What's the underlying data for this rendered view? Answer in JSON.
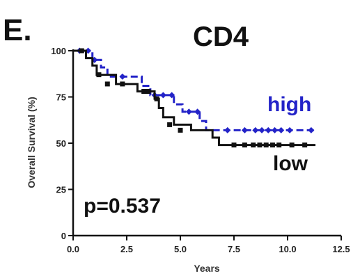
{
  "panel_label": "E.",
  "colors": {
    "high": "#2323c8",
    "low": "#111111",
    "axis": "#111111"
  },
  "chart_data": {
    "type": "line",
    "subtype": "kaplan-meier",
    "title": "CD4",
    "xlabel": "Years",
    "ylabel": "Overall Survival (%)",
    "xlim": [
      0,
      12.5
    ],
    "ylim": [
      0,
      100
    ],
    "x_ticks": [
      "0.0",
      "2.5",
      "5.0",
      "7.5",
      "10.0",
      "12.5"
    ],
    "y_ticks": [
      "0",
      "25",
      "50",
      "75",
      "100"
    ],
    "grid": false,
    "annotation": "p=0.537",
    "series": [
      {
        "name": "high",
        "color": "#2323c8",
        "style": "dashed",
        "steps": [
          [
            0,
            100
          ],
          [
            0.9,
            95
          ],
          [
            1.3,
            91
          ],
          [
            1.6,
            86
          ],
          [
            3.2,
            81
          ],
          [
            3.6,
            76
          ],
          [
            4.7,
            71
          ],
          [
            5.1,
            67
          ],
          [
            5.9,
            62
          ],
          [
            6.2,
            57
          ]
        ],
        "end_x": 11.3,
        "censored": [
          [
            0.3,
            100
          ],
          [
            0.7,
            100
          ],
          [
            1.0,
            95
          ],
          [
            2.3,
            86
          ],
          [
            3.8,
            76
          ],
          [
            4.2,
            76
          ],
          [
            4.6,
            76
          ],
          [
            5.4,
            67
          ],
          [
            5.8,
            67
          ],
          [
            7.2,
            57
          ],
          [
            8.0,
            57
          ],
          [
            8.5,
            57
          ],
          [
            8.8,
            57
          ],
          [
            9.1,
            57
          ],
          [
            9.4,
            57
          ],
          [
            9.7,
            57
          ],
          [
            10.1,
            57
          ],
          [
            11.1,
            57
          ]
        ]
      },
      {
        "name": "low",
        "color": "#111111",
        "style": "solid",
        "steps": [
          [
            0,
            100
          ],
          [
            0.6,
            96
          ],
          [
            0.9,
            92
          ],
          [
            1.1,
            87
          ],
          [
            2.0,
            82
          ],
          [
            3.0,
            78
          ],
          [
            3.8,
            74
          ],
          [
            4.0,
            69
          ],
          [
            4.2,
            64
          ],
          [
            4.7,
            60
          ],
          [
            5.5,
            57
          ],
          [
            6.5,
            53
          ],
          [
            6.8,
            49
          ]
        ],
        "end_x": 11.3,
        "censored": [
          [
            0.4,
            100
          ],
          [
            1.2,
            87
          ],
          [
            1.6,
            82
          ],
          [
            2.3,
            82
          ],
          [
            3.3,
            78
          ],
          [
            3.5,
            78
          ],
          [
            3.9,
            74
          ],
          [
            4.5,
            60
          ],
          [
            5.0,
            57
          ],
          [
            7.5,
            49
          ],
          [
            8.0,
            49
          ],
          [
            8.4,
            49
          ],
          [
            8.7,
            49
          ],
          [
            9.0,
            49
          ],
          [
            9.3,
            49
          ],
          [
            9.6,
            49
          ],
          [
            10.2,
            49
          ],
          [
            10.8,
            49
          ]
        ]
      }
    ]
  }
}
